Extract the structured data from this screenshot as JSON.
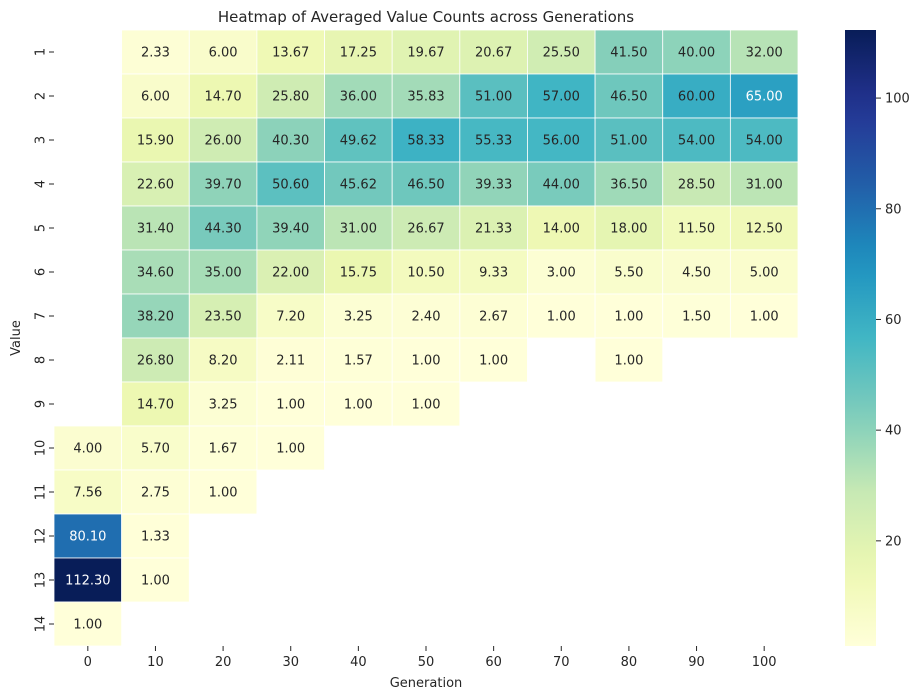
{
  "chart_data": {
    "type": "heatmap",
    "title": "Heatmap of Averaged Value Counts across Generations",
    "xlabel": "Generation",
    "ylabel": "Value",
    "x_categories": [
      "0",
      "10",
      "20",
      "30",
      "40",
      "50",
      "60",
      "70",
      "80",
      "90",
      "100"
    ],
    "y_categories": [
      "1",
      "2",
      "3",
      "4",
      "5",
      "6",
      "7",
      "8",
      "9",
      "10",
      "11",
      "12",
      "13",
      "14"
    ],
    "values": [
      [
        null,
        2.33,
        6.0,
        13.67,
        17.25,
        19.67,
        20.67,
        25.5,
        41.5,
        40.0,
        32.0
      ],
      [
        null,
        6.0,
        14.7,
        25.8,
        36.0,
        35.83,
        51.0,
        57.0,
        46.5,
        60.0,
        65.0
      ],
      [
        null,
        15.9,
        26.0,
        40.3,
        49.62,
        58.33,
        55.33,
        56.0,
        51.0,
        54.0,
        54.0
      ],
      [
        null,
        22.6,
        39.7,
        50.6,
        45.62,
        46.5,
        39.33,
        44.0,
        36.5,
        28.5,
        31.0
      ],
      [
        null,
        31.4,
        44.3,
        39.4,
        31.0,
        26.67,
        21.33,
        14.0,
        18.0,
        11.5,
        12.5
      ],
      [
        null,
        34.6,
        35.0,
        22.0,
        15.75,
        10.5,
        9.33,
        3.0,
        5.5,
        4.5,
        5.0
      ],
      [
        null,
        38.2,
        23.5,
        7.2,
        3.25,
        2.4,
        2.67,
        1.0,
        1.0,
        1.5,
        1.0
      ],
      [
        null,
        26.8,
        8.2,
        2.11,
        1.57,
        1.0,
        1.0,
        null,
        1.0,
        null,
        null
      ],
      [
        null,
        14.7,
        3.25,
        1.0,
        1.0,
        1.0,
        null,
        null,
        null,
        null,
        null
      ],
      [
        4.0,
        5.7,
        1.67,
        1.0,
        null,
        null,
        null,
        null,
        null,
        null,
        null
      ],
      [
        7.56,
        2.75,
        1.0,
        null,
        null,
        null,
        null,
        null,
        null,
        null,
        null
      ],
      [
        80.1,
        1.33,
        null,
        null,
        null,
        null,
        null,
        null,
        null,
        null,
        null
      ],
      [
        112.3,
        1.0,
        null,
        null,
        null,
        null,
        null,
        null,
        null,
        null,
        null
      ],
      [
        1.0,
        null,
        null,
        null,
        null,
        null,
        null,
        null,
        null,
        null,
        null
      ]
    ],
    "value_format": "2 decimals",
    "colormap": "YlGnBu",
    "color_range": [
      1.0,
      112.3
    ],
    "colorbar_ticks": [
      20,
      40,
      60,
      80,
      100
    ],
    "colorbar_position": "right",
    "grid": false
  }
}
